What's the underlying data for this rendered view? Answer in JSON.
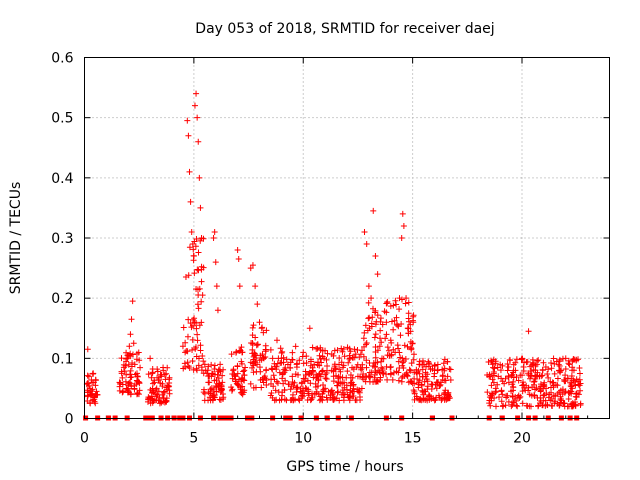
{
  "chart_data": {
    "type": "scatter",
    "title": "Day 053 of 2018, SRMTID for receiver daej",
    "xlabel": "GPS time / hours",
    "ylabel": "SRMTID / TECUs",
    "xlim": [
      0,
      24
    ],
    "ylim": [
      0,
      0.6
    ],
    "x_ticks": [
      0,
      5,
      10,
      15,
      20
    ],
    "x_tick_labels": [
      "0",
      "5",
      "10",
      "15",
      "20"
    ],
    "y_ticks": [
      0,
      0.1,
      0.2,
      0.3,
      0.4,
      0.5,
      0.6
    ],
    "y_tick_labels": [
      "0",
      "0.1",
      "0.2",
      "0.3",
      "0.4",
      "0.5",
      "0.6"
    ],
    "grid": true,
    "legend": "none",
    "marker": "plus",
    "color": "#ff0000",
    "series": [
      {
        "name": "SRMTID",
        "points": [
          [
            0.15,
            0.115
          ],
          [
            0.2,
            0.07
          ],
          [
            0.25,
            0.05
          ],
          [
            0.3,
            0.04
          ],
          [
            0.35,
            0.06
          ],
          [
            0.4,
            0.075
          ],
          [
            0.45,
            0.035
          ],
          [
            0.5,
            0.055
          ],
          [
            0.55,
            0.045
          ],
          [
            1.6,
            0.06
          ],
          [
            1.7,
            0.075
          ],
          [
            1.8,
            0.085
          ],
          [
            1.9,
            0.095
          ],
          [
            2.0,
            0.105
          ],
          [
            2.05,
            0.12
          ],
          [
            2.1,
            0.14
          ],
          [
            2.15,
            0.165
          ],
          [
            2.2,
            0.195
          ],
          [
            2.25,
            0.125
          ],
          [
            2.3,
            0.09
          ],
          [
            2.4,
            0.075
          ],
          [
            2.5,
            0.06
          ],
          [
            3.0,
            0.1
          ],
          [
            3.1,
            0.075
          ],
          [
            3.2,
            0.06
          ],
          [
            3.3,
            0.05
          ],
          [
            3.4,
            0.045
          ],
          [
            3.5,
            0.07
          ],
          [
            3.6,
            0.08
          ],
          [
            3.7,
            0.065
          ],
          [
            3.8,
            0.055
          ],
          [
            4.5,
            0.12
          ],
          [
            4.6,
            0.11
          ],
          [
            4.7,
            0.495
          ],
          [
            4.75,
            0.47
          ],
          [
            4.8,
            0.41
          ],
          [
            4.85,
            0.36
          ],
          [
            4.9,
            0.31
          ],
          [
            4.95,
            0.29
          ],
          [
            5.0,
            0.27
          ],
          [
            5.05,
            0.52
          ],
          [
            5.1,
            0.54
          ],
          [
            5.15,
            0.5
          ],
          [
            5.2,
            0.46
          ],
          [
            5.25,
            0.4
          ],
          [
            5.3,
            0.35
          ],
          [
            5.35,
            0.3
          ],
          [
            5.4,
            0.205
          ],
          [
            5.5,
            0.09
          ],
          [
            5.6,
            0.075
          ],
          [
            5.7,
            0.06
          ],
          [
            5.8,
            0.07
          ],
          [
            5.9,
            0.3
          ],
          [
            5.95,
            0.31
          ],
          [
            6.0,
            0.26
          ],
          [
            6.05,
            0.22
          ],
          [
            6.1,
            0.18
          ],
          [
            6.2,
            0.09
          ],
          [
            6.3,
            0.06
          ],
          [
            6.8,
            0.08
          ],
          [
            6.9,
            0.07
          ],
          [
            7.0,
            0.28
          ],
          [
            7.05,
            0.265
          ],
          [
            7.1,
            0.22
          ],
          [
            7.2,
            0.11
          ],
          [
            7.3,
            0.08
          ],
          [
            7.6,
            0.25
          ],
          [
            7.7,
            0.255
          ],
          [
            7.8,
            0.22
          ],
          [
            7.9,
            0.19
          ],
          [
            8.0,
            0.16
          ],
          [
            8.1,
            0.15
          ],
          [
            8.2,
            0.1
          ],
          [
            8.3,
            0.08
          ],
          [
            8.6,
            0.1
          ],
          [
            8.8,
            0.13
          ],
          [
            9.0,
            0.1
          ],
          [
            9.2,
            0.08
          ],
          [
            9.5,
            0.07
          ],
          [
            9.7,
            0.09
          ],
          [
            10.0,
            0.11
          ],
          [
            10.3,
            0.15
          ],
          [
            10.5,
            0.09
          ],
          [
            10.8,
            0.07
          ],
          [
            11.0,
            0.05
          ],
          [
            11.3,
            0.08
          ],
          [
            11.6,
            0.06
          ],
          [
            11.9,
            0.04
          ],
          [
            12.2,
            0.06
          ],
          [
            12.5,
            0.07
          ],
          [
            12.8,
            0.31
          ],
          [
            12.9,
            0.29
          ],
          [
            13.0,
            0.22
          ],
          [
            13.1,
            0.2
          ],
          [
            13.2,
            0.345
          ],
          [
            13.3,
            0.27
          ],
          [
            13.4,
            0.24
          ],
          [
            13.5,
            0.12
          ],
          [
            13.6,
            0.1
          ],
          [
            13.8,
            0.16
          ],
          [
            14.0,
            0.13
          ],
          [
            14.2,
            0.11
          ],
          [
            14.4,
            0.2
          ],
          [
            14.5,
            0.3
          ],
          [
            14.55,
            0.34
          ],
          [
            14.6,
            0.32
          ],
          [
            14.7,
            0.2
          ],
          [
            14.8,
            0.15
          ],
          [
            15.0,
            0.125
          ],
          [
            15.3,
            0.09
          ],
          [
            15.6,
            0.07
          ],
          [
            16.0,
            0.08
          ],
          [
            16.3,
            0.06
          ],
          [
            16.6,
            0.07
          ],
          [
            18.5,
            0.07
          ],
          [
            18.8,
            0.05
          ],
          [
            19.1,
            0.04
          ],
          [
            19.4,
            0.06
          ],
          [
            19.7,
            0.08
          ],
          [
            20.0,
            0.1
          ],
          [
            20.3,
            0.145
          ],
          [
            20.5,
            0.09
          ],
          [
            20.8,
            0.07
          ],
          [
            21.1,
            0.05
          ],
          [
            21.4,
            0.06
          ],
          [
            21.7,
            0.08
          ],
          [
            22.0,
            0.1
          ],
          [
            22.3,
            0.05
          ],
          [
            22.6,
            0.04
          ]
        ],
        "clusters": [
          {
            "x_range": [
              0.1,
              0.6
            ],
            "y_range": [
              0.025,
              0.075
            ]
          },
          {
            "x_range": [
              1.6,
              2.55
            ],
            "y_range": [
              0.04,
              0.11
            ]
          },
          {
            "x_range": [
              2.9,
              3.9
            ],
            "y_range": [
              0.025,
              0.085
            ]
          },
          {
            "x_range": [
              4.5,
              5.45
            ],
            "y_range": [
              0.08,
              0.3
            ]
          },
          {
            "x_range": [
              5.45,
              6.4
            ],
            "y_range": [
              0.03,
              0.09
            ]
          },
          {
            "x_range": [
              6.7,
              7.35
            ],
            "y_range": [
              0.04,
              0.12
            ]
          },
          {
            "x_range": [
              7.6,
              8.4
            ],
            "y_range": [
              0.05,
              0.16
            ]
          },
          {
            "x_range": [
              8.5,
              12.7
            ],
            "y_range": [
              0.03,
              0.12
            ]
          },
          {
            "x_range": [
              12.7,
              15.1
            ],
            "y_range": [
              0.06,
              0.2
            ]
          },
          {
            "x_range": [
              15.0,
              16.8
            ],
            "y_range": [
              0.03,
              0.1
            ]
          },
          {
            "x_range": [
              18.4,
              22.7
            ],
            "y_range": [
              0.02,
              0.1
            ]
          }
        ],
        "zero_points": [
          0.05,
          0.6,
          1.1,
          1.4,
          1.95,
          2.8,
          3.0,
          3.1,
          3.5,
          3.8,
          4.1,
          4.35,
          4.5,
          4.8,
          5.3,
          5.9,
          6.2,
          6.35,
          6.5,
          6.7,
          7.45,
          7.65,
          8.6,
          9.2,
          9.4,
          9.9,
          10.6,
          11.1,
          11.6,
          12.2,
          13.8,
          14.5,
          15.9,
          16.8,
          18.5,
          19.1,
          19.8,
          20.3,
          20.6,
          21.2,
          21.8,
          22.2,
          22.5
        ]
      }
    ]
  }
}
